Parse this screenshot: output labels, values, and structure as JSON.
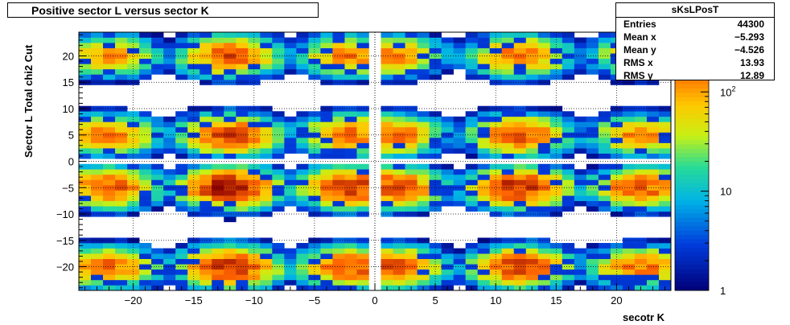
{
  "chart_data": {
    "type": "heatmap",
    "title": "Positive sector L versus sector K",
    "xlabel": "secotr K",
    "ylabel": "Sector L  Total chi2 Cut",
    "xlim": [
      -24.5,
      24.5
    ],
    "ylim": [
      -24.5,
      24.5
    ],
    "x_ticks": [
      -20,
      -15,
      -10,
      -5,
      0,
      5,
      10,
      15,
      20
    ],
    "x_tick_labels": [
      "−20",
      "−15",
      "−10",
      "−5",
      "0",
      "5",
      "10",
      "15",
      "20"
    ],
    "y_ticks": [
      -20,
      -15,
      -10,
      -5,
      0,
      5,
      10,
      15,
      20
    ],
    "y_tick_labels": [
      "−20",
      "−15",
      "−10",
      "−5",
      "0",
      "5",
      "10",
      "15",
      "20"
    ],
    "colorbar": {
      "scale": "log",
      "range": [
        1,
        400
      ],
      "tick_labels": [
        "1",
        "10",
        "10^2"
      ],
      "tick_values": [
        1,
        10,
        100
      ]
    },
    "grid": true,
    "z_pattern": {
      "k_group_centers": [
        -22,
        -12,
        -2,
        1.5,
        12,
        22
      ],
      "l_group_centers": [
        -20,
        -5,
        5,
        20
      ],
      "k_weights": [
        0.6,
        1.0,
        0.75,
        0.7,
        0.85,
        0.55
      ],
      "l_weights": [
        0.8,
        1.0,
        0.65,
        0.55
      ],
      "peak": 350
    },
    "stats": {
      "name": "sKsLPosT",
      "rows": [
        {
          "label": "Entries",
          "value": "44300"
        },
        {
          "label": "Mean x",
          "value": "−5.293"
        },
        {
          "label": "Mean y",
          "value": "−4.526"
        },
        {
          "label": "RMS x",
          "value": "13.93"
        },
        {
          "label": "RMS y",
          "value": "12.89"
        }
      ]
    }
  }
}
